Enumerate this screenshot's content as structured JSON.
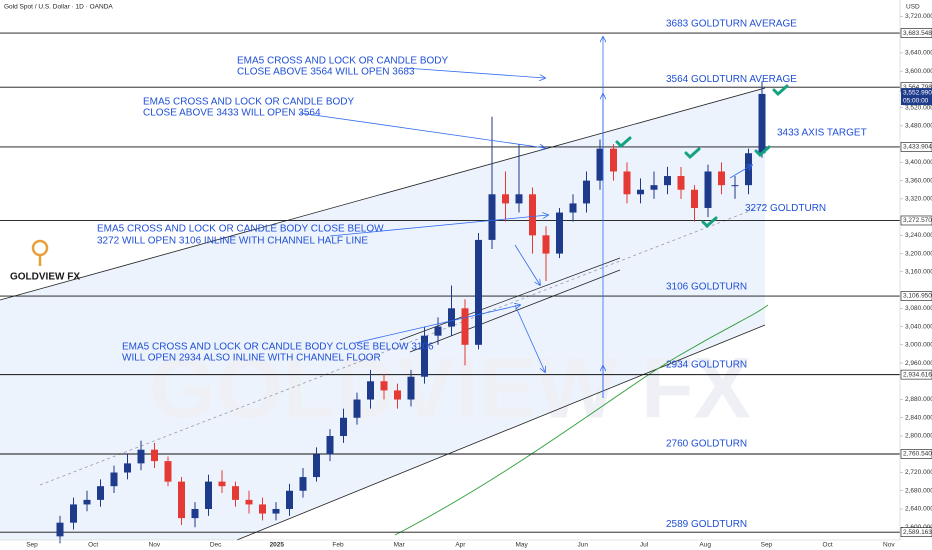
{
  "chart_data": {
    "type": "candlestick",
    "title": "Gold Spot / U.S. Dollar · 1D · OANDA",
    "currency": "USD",
    "logo": "GOLDVIEW FX",
    "watermark": "GOLDVIEW FX",
    "up_color": "#1e3a8a",
    "down_color": "#e53935",
    "x_labels": [
      "Sep",
      "Oct",
      "Nov",
      "Dec",
      "2025",
      "Feb",
      "Mar",
      "Apr",
      "May",
      "Jun",
      "Jul",
      "Aug",
      "Sep",
      "Oct",
      "Nov"
    ],
    "open": [
      2580,
      2610,
      2650,
      2660,
      2690,
      2720,
      2740,
      2770,
      2745,
      2700,
      2620,
      2640,
      2700,
      2690,
      2660,
      2650,
      2630,
      2640,
      2680,
      2710,
      2760,
      2800,
      2840,
      2880,
      2920,
      2900,
      2880,
      2930,
      3020,
      3040,
      3080,
      3000,
      3230,
      3330,
      3310,
      3330,
      3240,
      3200,
      3290,
      3310,
      3360,
      3430,
      3380,
      3330,
      3340,
      3350,
      3370,
      3340,
      3300,
      3380,
      3350,
      3350,
      3420
    ],
    "high": [
      2625,
      2665,
      2680,
      2705,
      2735,
      2760,
      2790,
      2785,
      2755,
      2710,
      2655,
      2715,
      2725,
      2700,
      2680,
      2665,
      2655,
      2695,
      2730,
      2775,
      2815,
      2860,
      2895,
      2945,
      2935,
      2915,
      2945,
      3040,
      3060,
      3130,
      3100,
      3245,
      3500,
      3380,
      3440,
      3345,
      3260,
      3300,
      3330,
      3380,
      3450,
      3440,
      3400,
      3365,
      3380,
      3390,
      3390,
      3350,
      3395,
      3400,
      3370,
      3430,
      3578
    ],
    "low": [
      2565,
      2595,
      2635,
      2645,
      2675,
      2705,
      2725,
      2730,
      2690,
      2605,
      2600,
      2625,
      2675,
      2645,
      2630,
      2615,
      2615,
      2625,
      2665,
      2700,
      2745,
      2785,
      2825,
      2860,
      2880,
      2860,
      2865,
      2915,
      3000,
      3020,
      2955,
      2990,
      3210,
      3270,
      3290,
      3200,
      3140,
      3190,
      3270,
      3290,
      3340,
      3360,
      3310,
      3310,
      3320,
      3330,
      3320,
      3270,
      3280,
      3330,
      3320,
      3330,
      3410
    ],
    "close": [
      2610,
      2650,
      2660,
      2690,
      2720,
      2740,
      2770,
      2745,
      2700,
      2620,
      2640,
      2700,
      2690,
      2660,
      2650,
      2630,
      2640,
      2680,
      2710,
      2760,
      2800,
      2840,
      2880,
      2920,
      2900,
      2880,
      2930,
      3020,
      3040,
      3080,
      3000,
      3230,
      3330,
      3310,
      3330,
      3240,
      3200,
      3290,
      3310,
      3360,
      3430,
      3380,
      3330,
      3340,
      3350,
      3370,
      3340,
      3300,
      3380,
      3350,
      3350,
      3420,
      3550
    ],
    "ylim": [
      2572,
      3756
    ],
    "yticks": [
      {
        "value": 2600,
        "label": "2,600.000"
      },
      {
        "value": 2640,
        "label": "2,640.000"
      },
      {
        "value": 2680,
        "label": "2,680.000"
      },
      {
        "value": 2720,
        "label": "2,720.000"
      },
      {
        "value": 2800,
        "label": "2,800.000"
      },
      {
        "value": 2840,
        "label": "2,840.000"
      },
      {
        "value": 2880,
        "label": "2,880.000"
      },
      {
        "value": 2960,
        "label": "2,960.000"
      },
      {
        "value": 3000,
        "label": "3,000.000"
      },
      {
        "value": 3040,
        "label": "3,040.000"
      },
      {
        "value": 3080,
        "label": "3,080.000"
      },
      {
        "value": 3160,
        "label": "3,160.000"
      },
      {
        "value": 3200,
        "label": "3,200.000"
      },
      {
        "value": 3240,
        "label": "3,240.000"
      },
      {
        "value": 3320,
        "label": "3,320.000"
      },
      {
        "value": 3360,
        "label": "3,360.000"
      },
      {
        "value": 3400,
        "label": "3,400.000"
      },
      {
        "value": 3480,
        "label": "3,480.000"
      },
      {
        "value": 3520,
        "label": "3,520.000"
      },
      {
        "value": 3600,
        "label": "3,600.000"
      },
      {
        "value": 3640,
        "label": "3,640.000"
      },
      {
        "value": 3720,
        "label": "3,720.000"
      }
    ],
    "levels": [
      {
        "value": 3683.548,
        "label": "3,683.548",
        "text": "3683 GOLDTURN AVERAGE"
      },
      {
        "value": 3564.798,
        "label": "3,564.798",
        "text": "3564 GOLDTURN AVERAGE"
      },
      {
        "value": 3433.904,
        "label": "3,433.904",
        "text": "3433 AXIS TARGET"
      },
      {
        "value": 3272.57,
        "label": "3,272.570",
        "text": "3272 GOLDTURN"
      },
      {
        "value": 3106.95,
        "label": "3,106.950",
        "text": "3106 GOLDTURN"
      },
      {
        "value": 2934.616,
        "label": "2,934.616",
        "text": "2934 GOLDTURN"
      },
      {
        "value": 2760.54,
        "label": "2,760.540",
        "text": "2760 GOLDTURN"
      },
      {
        "value": 2589.163,
        "label": "2,589.163",
        "text": "2589 GOLDTURN"
      }
    ],
    "last_price": {
      "value": 3552.99,
      "label": "3,552.990",
      "countdown": "05:00:00"
    },
    "annotations": [
      [
        "EMA5 CROSS AND LOCK OR CANDLE BODY",
        "CLOSE ABOVE 3564 WILL OPEN 3683"
      ],
      [
        "EMA5 CROSS AND LOCK OR CANDLE BODY",
        "CLOSE ABOVE 3433 WILL OPEN 3564"
      ],
      [
        "EMA5 CROSS AND LOCK OR CANDLE BODY CLOSE BELOW",
        "3272 WILL OPEN 3106 INLINE WITH CHANNEL HALF LINE"
      ],
      [
        "EMA5 CROSS AND LOCK OR CANDLE BODY CLOSE BELOW 3106",
        "WILL OPEN 2934 ALSO INLINE WITH CHANNEL FLOOR"
      ]
    ]
  }
}
